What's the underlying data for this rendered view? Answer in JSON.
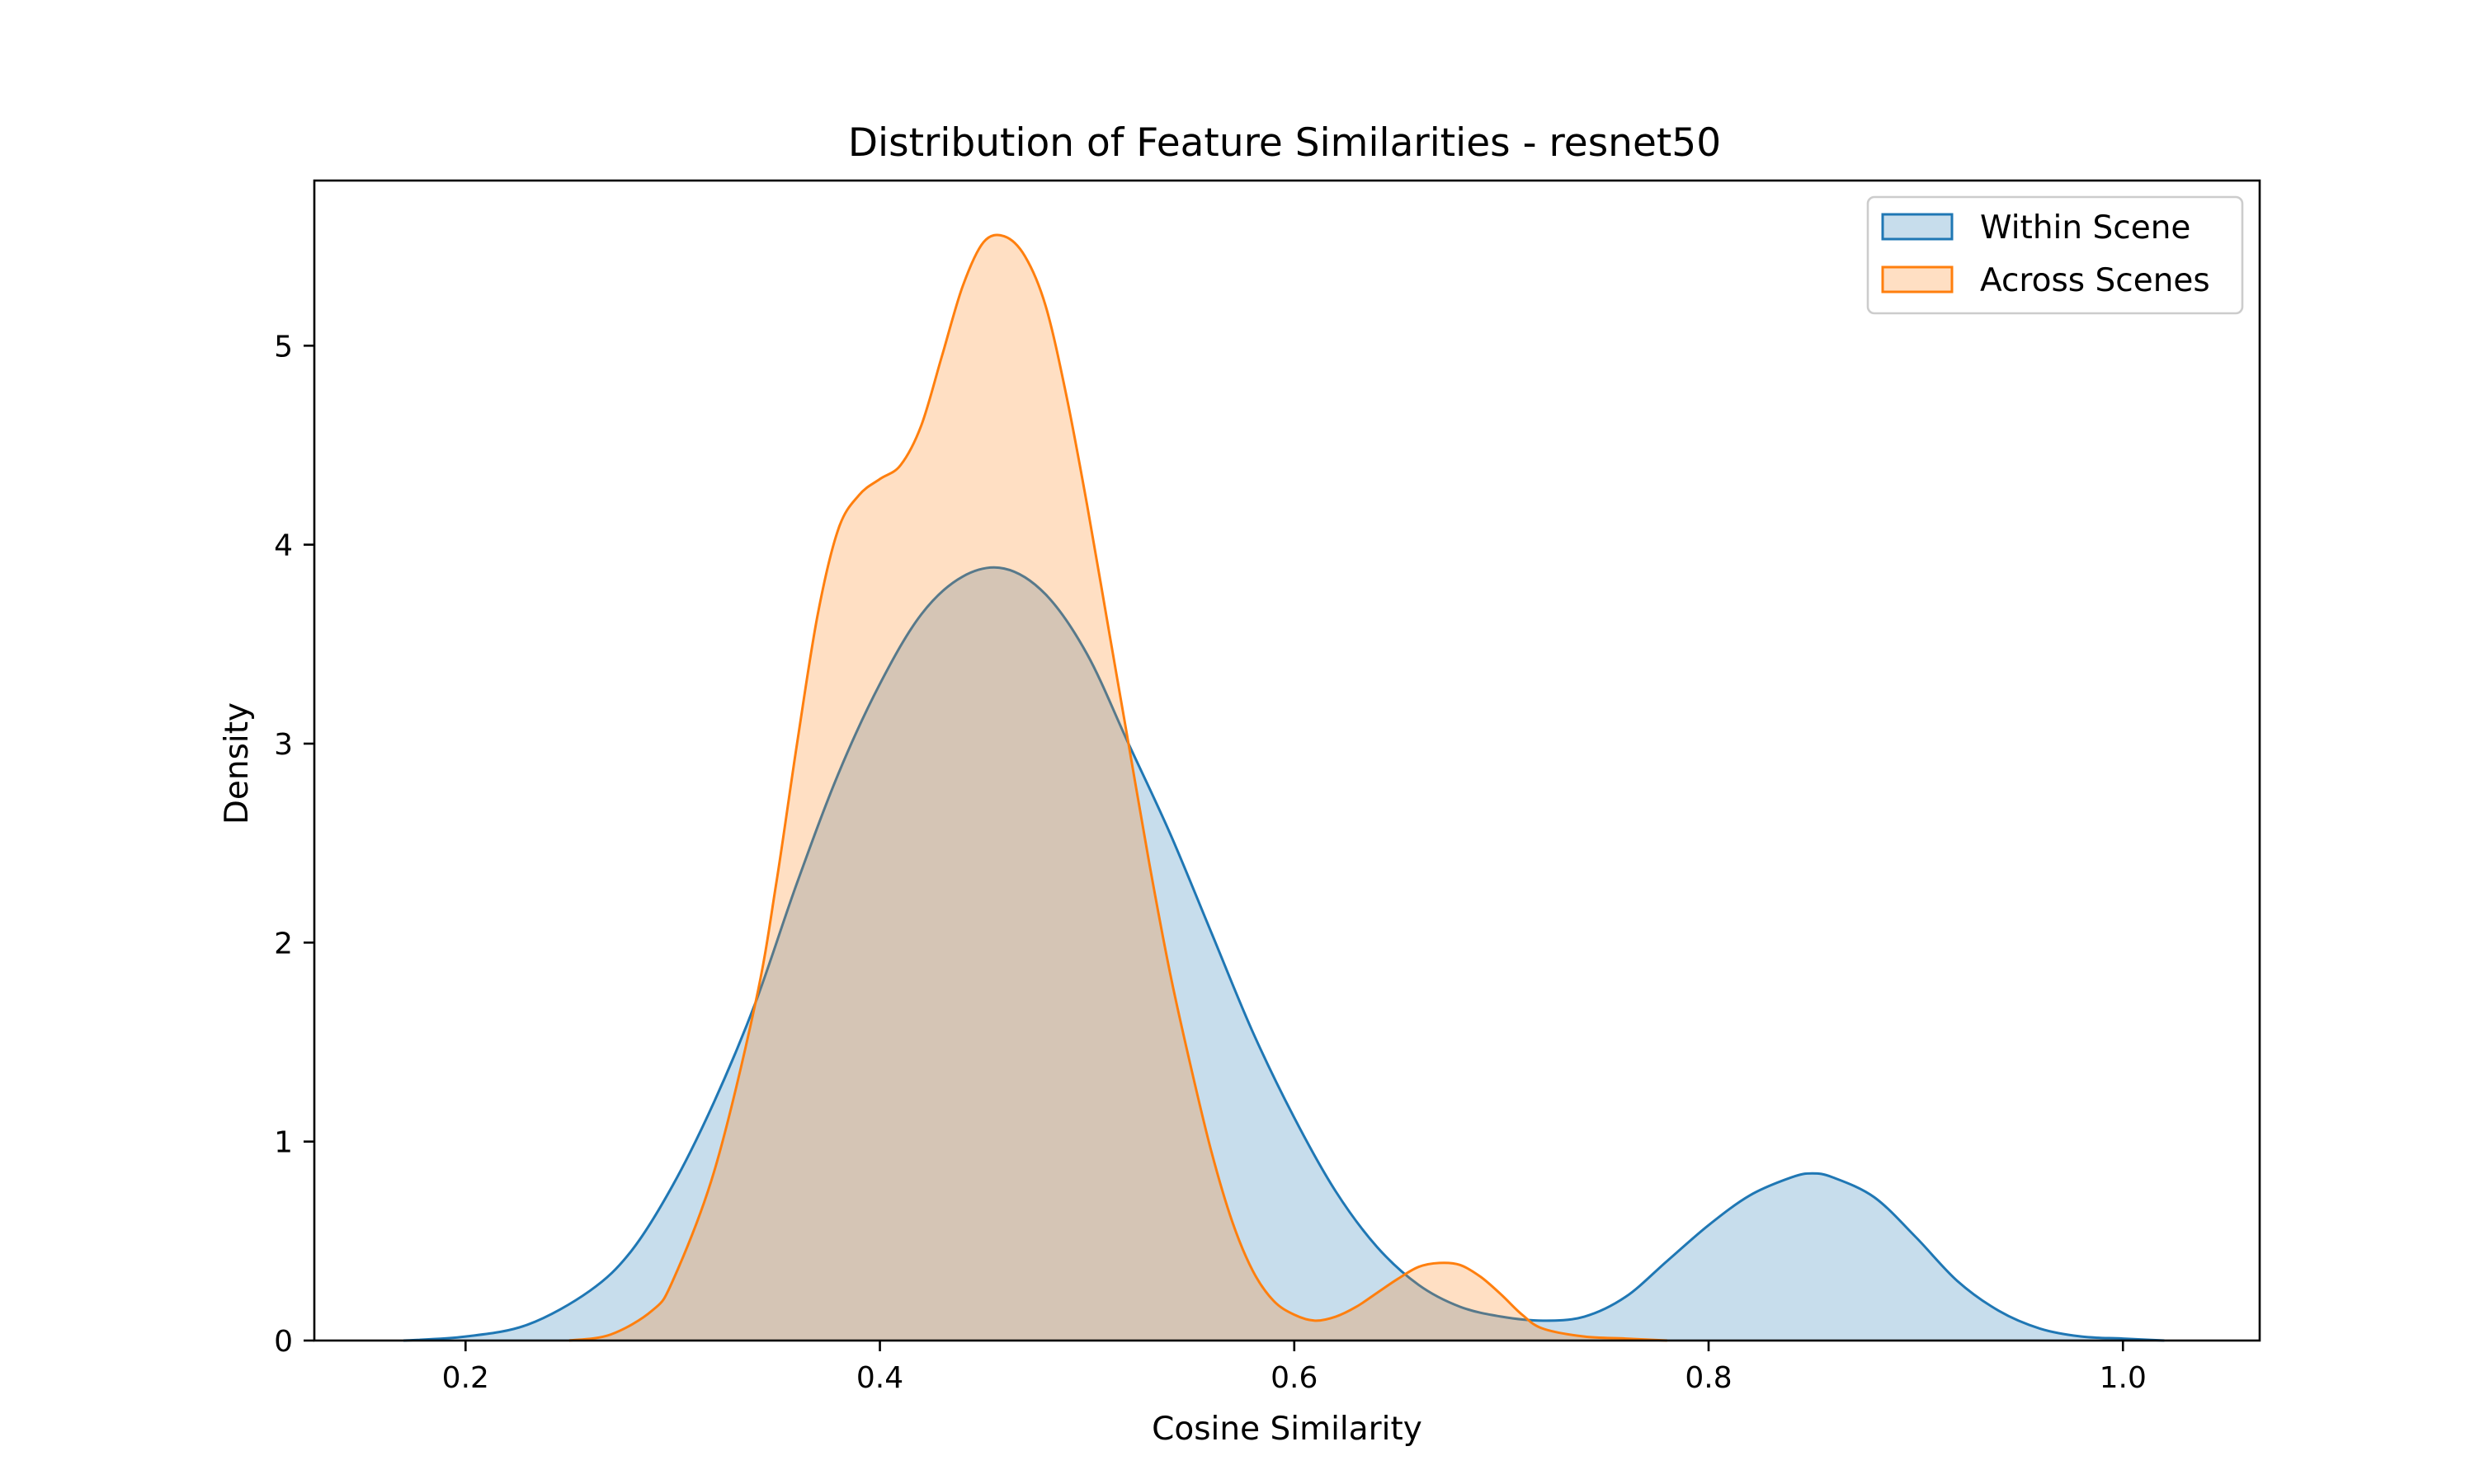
{
  "chart_data": {
    "type": "area",
    "title": "Distribution of Feature Similarities - resnet50",
    "xlabel": "Cosine Similarity",
    "ylabel": "Density",
    "xlim": [
      0.127,
      1.066
    ],
    "ylim": [
      0,
      5.83
    ],
    "xticks": [
      0.2,
      0.4,
      0.6,
      0.8,
      1.0
    ],
    "xtick_labels": [
      "0.2",
      "0.4",
      "0.6",
      "0.8",
      "1.0"
    ],
    "yticks": [
      0,
      1,
      2,
      3,
      4,
      5
    ],
    "ytick_labels": [
      "0",
      "1",
      "2",
      "3",
      "4",
      "5"
    ],
    "grid": false,
    "legend_position": "top-right",
    "series": [
      {
        "name": "Within Scene",
        "color": "#1f77b4",
        "fill_alpha": 0.25,
        "x": [
          0.17,
          0.2,
          0.23,
          0.26,
          0.28,
          0.3,
          0.32,
          0.34,
          0.36,
          0.38,
          0.4,
          0.42,
          0.44,
          0.46,
          0.48,
          0.5,
          0.52,
          0.54,
          0.56,
          0.58,
          0.6,
          0.62,
          0.64,
          0.66,
          0.68,
          0.7,
          0.72,
          0.74,
          0.76,
          0.78,
          0.8,
          0.82,
          0.84,
          0.85,
          0.86,
          0.88,
          0.9,
          0.92,
          0.94,
          0.96,
          0.98,
          1.0,
          1.02
        ],
        "y": [
          0.0,
          0.02,
          0.08,
          0.25,
          0.45,
          0.78,
          1.2,
          1.7,
          2.3,
          2.85,
          3.3,
          3.65,
          3.84,
          3.88,
          3.75,
          3.45,
          3.0,
          2.55,
          2.05,
          1.55,
          1.12,
          0.75,
          0.47,
          0.28,
          0.17,
          0.12,
          0.1,
          0.12,
          0.22,
          0.4,
          0.58,
          0.73,
          0.82,
          0.84,
          0.82,
          0.72,
          0.52,
          0.3,
          0.15,
          0.06,
          0.02,
          0.01,
          0.0
        ]
      },
      {
        "name": "Across Scenes",
        "color": "#ff7f0e",
        "fill_alpha": 0.25,
        "x": [
          0.25,
          0.27,
          0.29,
          0.3,
          0.32,
          0.34,
          0.35,
          0.36,
          0.37,
          0.38,
          0.39,
          0.4,
          0.41,
          0.42,
          0.43,
          0.44,
          0.45,
          0.46,
          0.47,
          0.48,
          0.49,
          0.5,
          0.51,
          0.52,
          0.53,
          0.54,
          0.55,
          0.56,
          0.57,
          0.58,
          0.59,
          0.6,
          0.61,
          0.62,
          0.63,
          0.64,
          0.65,
          0.66,
          0.67,
          0.68,
          0.69,
          0.7,
          0.71,
          0.72,
          0.74,
          0.76,
          0.78
        ],
        "y": [
          0.0,
          0.03,
          0.15,
          0.3,
          0.85,
          1.7,
          2.3,
          3.0,
          3.65,
          4.08,
          4.25,
          4.33,
          4.4,
          4.6,
          4.95,
          5.3,
          5.52,
          5.55,
          5.45,
          5.2,
          4.75,
          4.2,
          3.6,
          3.0,
          2.4,
          1.85,
          1.38,
          0.95,
          0.6,
          0.35,
          0.2,
          0.13,
          0.1,
          0.12,
          0.17,
          0.24,
          0.31,
          0.37,
          0.39,
          0.38,
          0.32,
          0.23,
          0.13,
          0.06,
          0.02,
          0.01,
          0.0
        ]
      }
    ]
  }
}
